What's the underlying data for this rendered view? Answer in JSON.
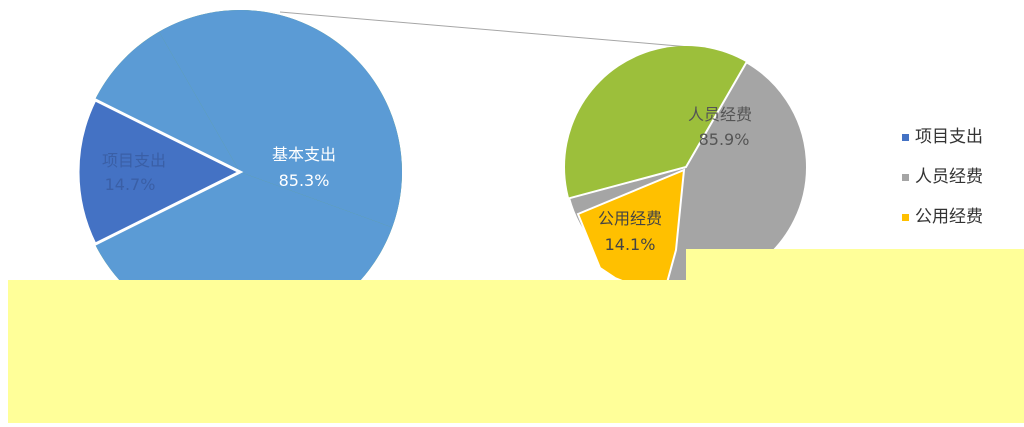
{
  "chart_data": {
    "type": "pie",
    "subtype": "pie-of-pie",
    "primary_pie": {
      "slices": [
        {
          "label": "基本支出",
          "percent_label": "85.3%",
          "value": 85.3,
          "color": "#5b9bd5"
        },
        {
          "label": "项目支出",
          "percent_label": "14.7%",
          "value": 14.7,
          "color": "#4472c4"
        }
      ],
      "hidden_slice_color": "#70ad47"
    },
    "secondary_pie": {
      "slices": [
        {
          "label": "人员经费",
          "percent_label": "85.9%",
          "value": 85.9,
          "color": "#a5a5a5"
        },
        {
          "label": "公用经费",
          "percent_label": "14.1%",
          "value": 14.1,
          "color": "#ffc000"
        }
      ],
      "hidden_slice_color": "#9cbf3b"
    },
    "legend": {
      "position": "right",
      "items": [
        {
          "label": "项目支出",
          "color": "#4472c4"
        },
        {
          "label": "人员经费",
          "color": "#a5a5a5"
        },
        {
          "label": "公用经费",
          "color": "#ffc000"
        }
      ]
    },
    "overlay_color": "#ffff99"
  }
}
